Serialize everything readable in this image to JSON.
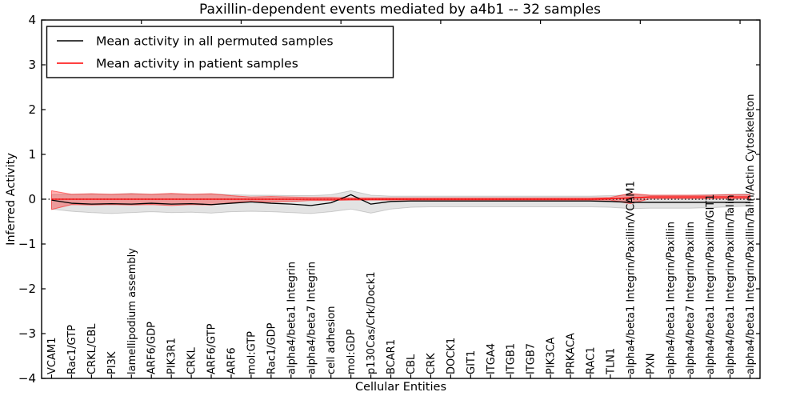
{
  "chart_data": {
    "type": "line",
    "title": "Paxillin-dependent events mediated by a4b1 -- 32 samples",
    "xlabel": "Cellular Entities",
    "ylabel": "Inferred Activity",
    "ylim": [
      -4,
      4
    ],
    "yticks": [
      -4,
      -3,
      -2,
      -1,
      0,
      1,
      2,
      3,
      4
    ],
    "grid": false,
    "legend_position": "upper left",
    "zero_reference_line": 0,
    "categories": [
      "VCAM1",
      "Rac1/GTP",
      "CRKL/CBL",
      "PI3K",
      "lamellipodium assembly",
      "ARF6/GDP",
      "PIK3R1",
      "CRKL",
      "ARF6/GTP",
      "ARF6",
      "mol:GTP",
      "Rac1/GDP",
      "alpha4/beta1 Integrin",
      "alpha4/beta7 Integrin",
      "cell adhesion",
      "mol:GDP",
      "p130Cas/Crk/Dock1",
      "BCAR1",
      "CBL",
      "CRK",
      "DOCK1",
      "GIT1",
      "ITGA4",
      "ITGB1",
      "ITGB7",
      "PIK3CA",
      "PRKACA",
      "RAC1",
      "TLN1",
      "alpha4/beta1 Integrin/Paxillin/VCAM1",
      "PXN",
      "alpha4/beta1 Integrin/Paxillin",
      "alpha4/beta7 Integrin/Paxillin",
      "alpha4/beta1 Integrin/Paxillin/GIT1",
      "alpha4/beta1 Integrin/Paxillin/Talin",
      "alpha4/beta1 Integrin/Paxillin/Talin/Actin Cytoskeleton"
    ],
    "series": [
      {
        "name": "Mean activity in all permuted samples",
        "color": "#000000",
        "values": [
          -0.02,
          -0.09,
          -0.11,
          -0.1,
          -0.11,
          -0.09,
          -0.11,
          -0.1,
          -0.12,
          -0.09,
          -0.06,
          -0.09,
          -0.11,
          -0.14,
          -0.08,
          0.1,
          -0.11,
          -0.05,
          -0.04,
          -0.04,
          -0.04,
          -0.04,
          -0.04,
          -0.04,
          -0.04,
          -0.04,
          -0.04,
          -0.04,
          -0.05,
          -0.07,
          -0.07,
          -0.07,
          -0.07,
          -0.07,
          -0.07,
          -0.07
        ]
      },
      {
        "name": "Mean activity in patient samples",
        "color": "#ff0000",
        "values": [
          0.0,
          0.0,
          0.0,
          0.0,
          0.0,
          0.0,
          0.0,
          0.0,
          0.0,
          0.0,
          0.0,
          0.0,
          0.0,
          0.0,
          0.0,
          0.0,
          0.0,
          0.0,
          0.0,
          0.0,
          0.0,
          0.0,
          0.0,
          0.0,
          0.0,
          0.0,
          0.0,
          0.0,
          0.01,
          0.03,
          0.05,
          0.05,
          0.05,
          0.05,
          0.05,
          0.05
        ]
      }
    ],
    "bands": [
      {
        "name": "permuted-samples-range",
        "fill": "rgba(0,0,0,0.11)",
        "edge": "rgba(0,0,0,0.16)",
        "upper": [
          0.1,
          0.11,
          0.12,
          0.11,
          0.13,
          0.11,
          0.12,
          0.11,
          0.12,
          0.1,
          0.09,
          0.09,
          0.08,
          0.08,
          0.1,
          0.19,
          0.09,
          0.07,
          0.07,
          0.07,
          0.07,
          0.07,
          0.07,
          0.07,
          0.07,
          0.07,
          0.07,
          0.07,
          0.08,
          0.1,
          0.09,
          0.09,
          0.09,
          0.1,
          0.11,
          0.12
        ],
        "lower": [
          -0.22,
          -0.27,
          -0.3,
          -0.32,
          -0.3,
          -0.28,
          -0.3,
          -0.29,
          -0.31,
          -0.28,
          -0.27,
          -0.28,
          -0.3,
          -0.32,
          -0.28,
          -0.22,
          -0.31,
          -0.22,
          -0.18,
          -0.17,
          -0.17,
          -0.17,
          -0.17,
          -0.17,
          -0.17,
          -0.17,
          -0.17,
          -0.17,
          -0.18,
          -0.21,
          -0.2,
          -0.2,
          -0.2,
          -0.19,
          -0.17,
          -0.15
        ]
      },
      {
        "name": "patient-samples-range",
        "fill": "rgba(255,0,0,0.32)",
        "edge": "rgba(255,0,0,0.50)",
        "upper": [
          0.19,
          0.11,
          0.12,
          0.11,
          0.12,
          0.11,
          0.13,
          0.11,
          0.12,
          0.08,
          0.05,
          0.06,
          0.05,
          0.04,
          0.04,
          0.03,
          0.03,
          0.03,
          0.03,
          0.03,
          0.03,
          0.03,
          0.03,
          0.03,
          0.03,
          0.03,
          0.03,
          0.03,
          0.04,
          0.13,
          0.09,
          0.09,
          0.09,
          0.09,
          0.1,
          0.1
        ],
        "lower": [
          -0.23,
          -0.12,
          -0.13,
          -0.12,
          -0.13,
          -0.12,
          -0.14,
          -0.12,
          -0.13,
          -0.08,
          -0.05,
          -0.06,
          -0.05,
          -0.03,
          -0.03,
          -0.02,
          -0.02,
          -0.02,
          -0.02,
          -0.02,
          -0.02,
          -0.02,
          -0.02,
          -0.02,
          -0.02,
          -0.02,
          -0.02,
          -0.02,
          -0.02,
          -0.1,
          0.01,
          0.01,
          0.01,
          0.01,
          0.01,
          0.01
        ]
      }
    ],
    "colors": {
      "frame": "#000000",
      "background": "#ffffff",
      "zero_line": "#000000"
    }
  }
}
